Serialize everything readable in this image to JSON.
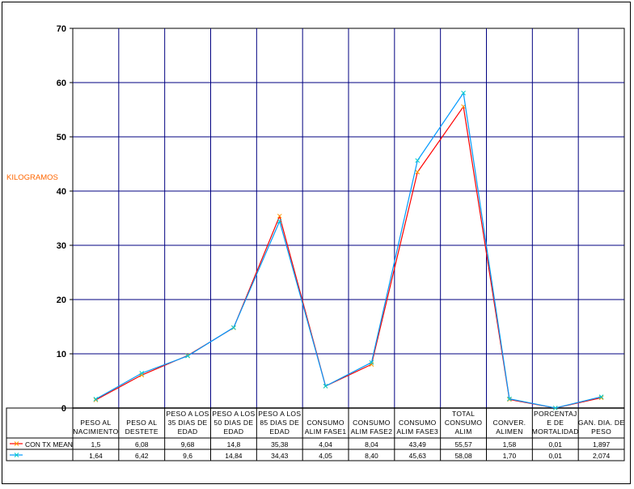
{
  "chart_data": {
    "type": "line",
    "ylabel": "KILOGRAMOS",
    "ylim": [
      0,
      70
    ],
    "yticks": [
      "0",
      "10",
      "20",
      "30",
      "40",
      "50",
      "60",
      "70"
    ],
    "grid": true,
    "categories": [
      [
        "PESO AL",
        "NACIMIENTO"
      ],
      [
        "PESO AL",
        "DESTETE"
      ],
      [
        "PESO A LOS",
        "35 DIAS DE",
        "EDAD"
      ],
      [
        "PESO A LOS",
        "50 DIAS DE",
        "EDAD"
      ],
      [
        "PESO A LOS",
        "85 DIAS DE",
        "EDAD"
      ],
      [
        "CONSUMO",
        "ALIM FASE1"
      ],
      [
        "CONSUMO",
        "ALIM FASE2"
      ],
      [
        "CONSUMO",
        "ALIM FASE3"
      ],
      [
        "TOTAL",
        "CONSUMO",
        "ALIM"
      ],
      [
        "CONVER.",
        "ALIMEN"
      ],
      [
        "PORCENTAJ",
        "E DE",
        "MORTALIDAD"
      ],
      [
        "GAN. DIA. DE",
        "PESO"
      ]
    ],
    "series": [
      {
        "name": "CON TX MEAN",
        "color": "#ff0000",
        "marker_color": "#ff9900",
        "labels": [
          "1,5",
          "6,08",
          "9,68",
          "14,8",
          "35,38",
          "4,04",
          "8,04",
          "43,49",
          "55,57",
          "1,58",
          "0,01",
          "1,897"
        ],
        "values": [
          1.5,
          6.08,
          9.68,
          14.8,
          35.38,
          4.04,
          8.04,
          43.49,
          55.57,
          1.58,
          0.01,
          1.897
        ]
      },
      {
        "name": "",
        "color": "#0099ff",
        "marker_color": "#00cccc",
        "labels": [
          "1,64",
          "6,42",
          "9,6",
          "14,84",
          "34,43",
          "4,05",
          "8,40",
          "45,63",
          "58,08",
          "1,70",
          "0,01",
          "2,074"
        ],
        "values": [
          1.64,
          6.42,
          9.6,
          14.84,
          34.43,
          4.05,
          8.4,
          45.63,
          58.08,
          1.7,
          0.01,
          2.074
        ]
      }
    ]
  }
}
